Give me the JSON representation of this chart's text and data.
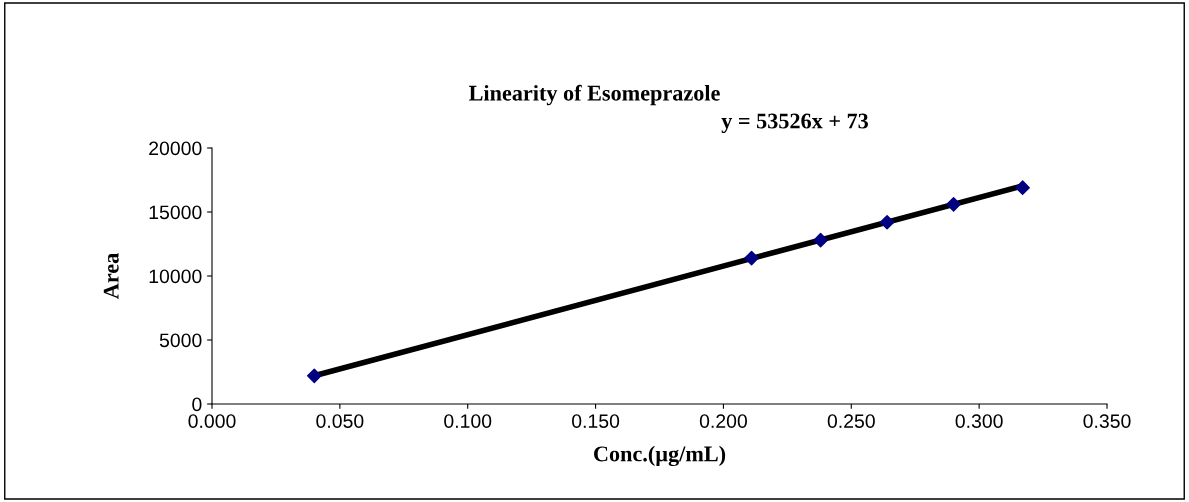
{
  "chart_data": {
    "type": "scatter",
    "title": "Linearity of Esomeprazole",
    "xlabel": "Conc.(µg/mL)",
    "ylabel": "Area",
    "annotations": [
      "y = 53526x + 73"
    ],
    "series": [
      {
        "color": "#000080",
        "marker": "diamond",
        "x": [
          0.04,
          0.211,
          0.238,
          0.264,
          0.29,
          0.317
        ],
        "values": [
          2200,
          11400,
          12800,
          14200,
          15600,
          16900
        ]
      },
      {
        "type": "line",
        "color": "#000000",
        "marker": "none",
        "x": [
          0.04,
          0.317
        ],
        "values": [
          2210,
          17040
        ]
      }
    ],
    "xlim": [
      0,
      0.35
    ],
    "xticks": [
      {
        "value": 0,
        "label": "0.000"
      },
      {
        "value": 0.05,
        "label": "0.050"
      },
      {
        "value": 0.1,
        "label": "0.100"
      },
      {
        "value": 0.15,
        "label": "0.150"
      },
      {
        "value": 0.2,
        "label": "0.200"
      },
      {
        "value": 0.25,
        "label": "0.250"
      },
      {
        "value": 0.3,
        "label": "0.300"
      },
      {
        "value": 0.35,
        "label": "0.350"
      }
    ],
    "ylim": [
      0,
      20000
    ],
    "yticks": [
      0,
      5000,
      10000,
      15000,
      20000
    ],
    "grid": false,
    "legend": false
  }
}
